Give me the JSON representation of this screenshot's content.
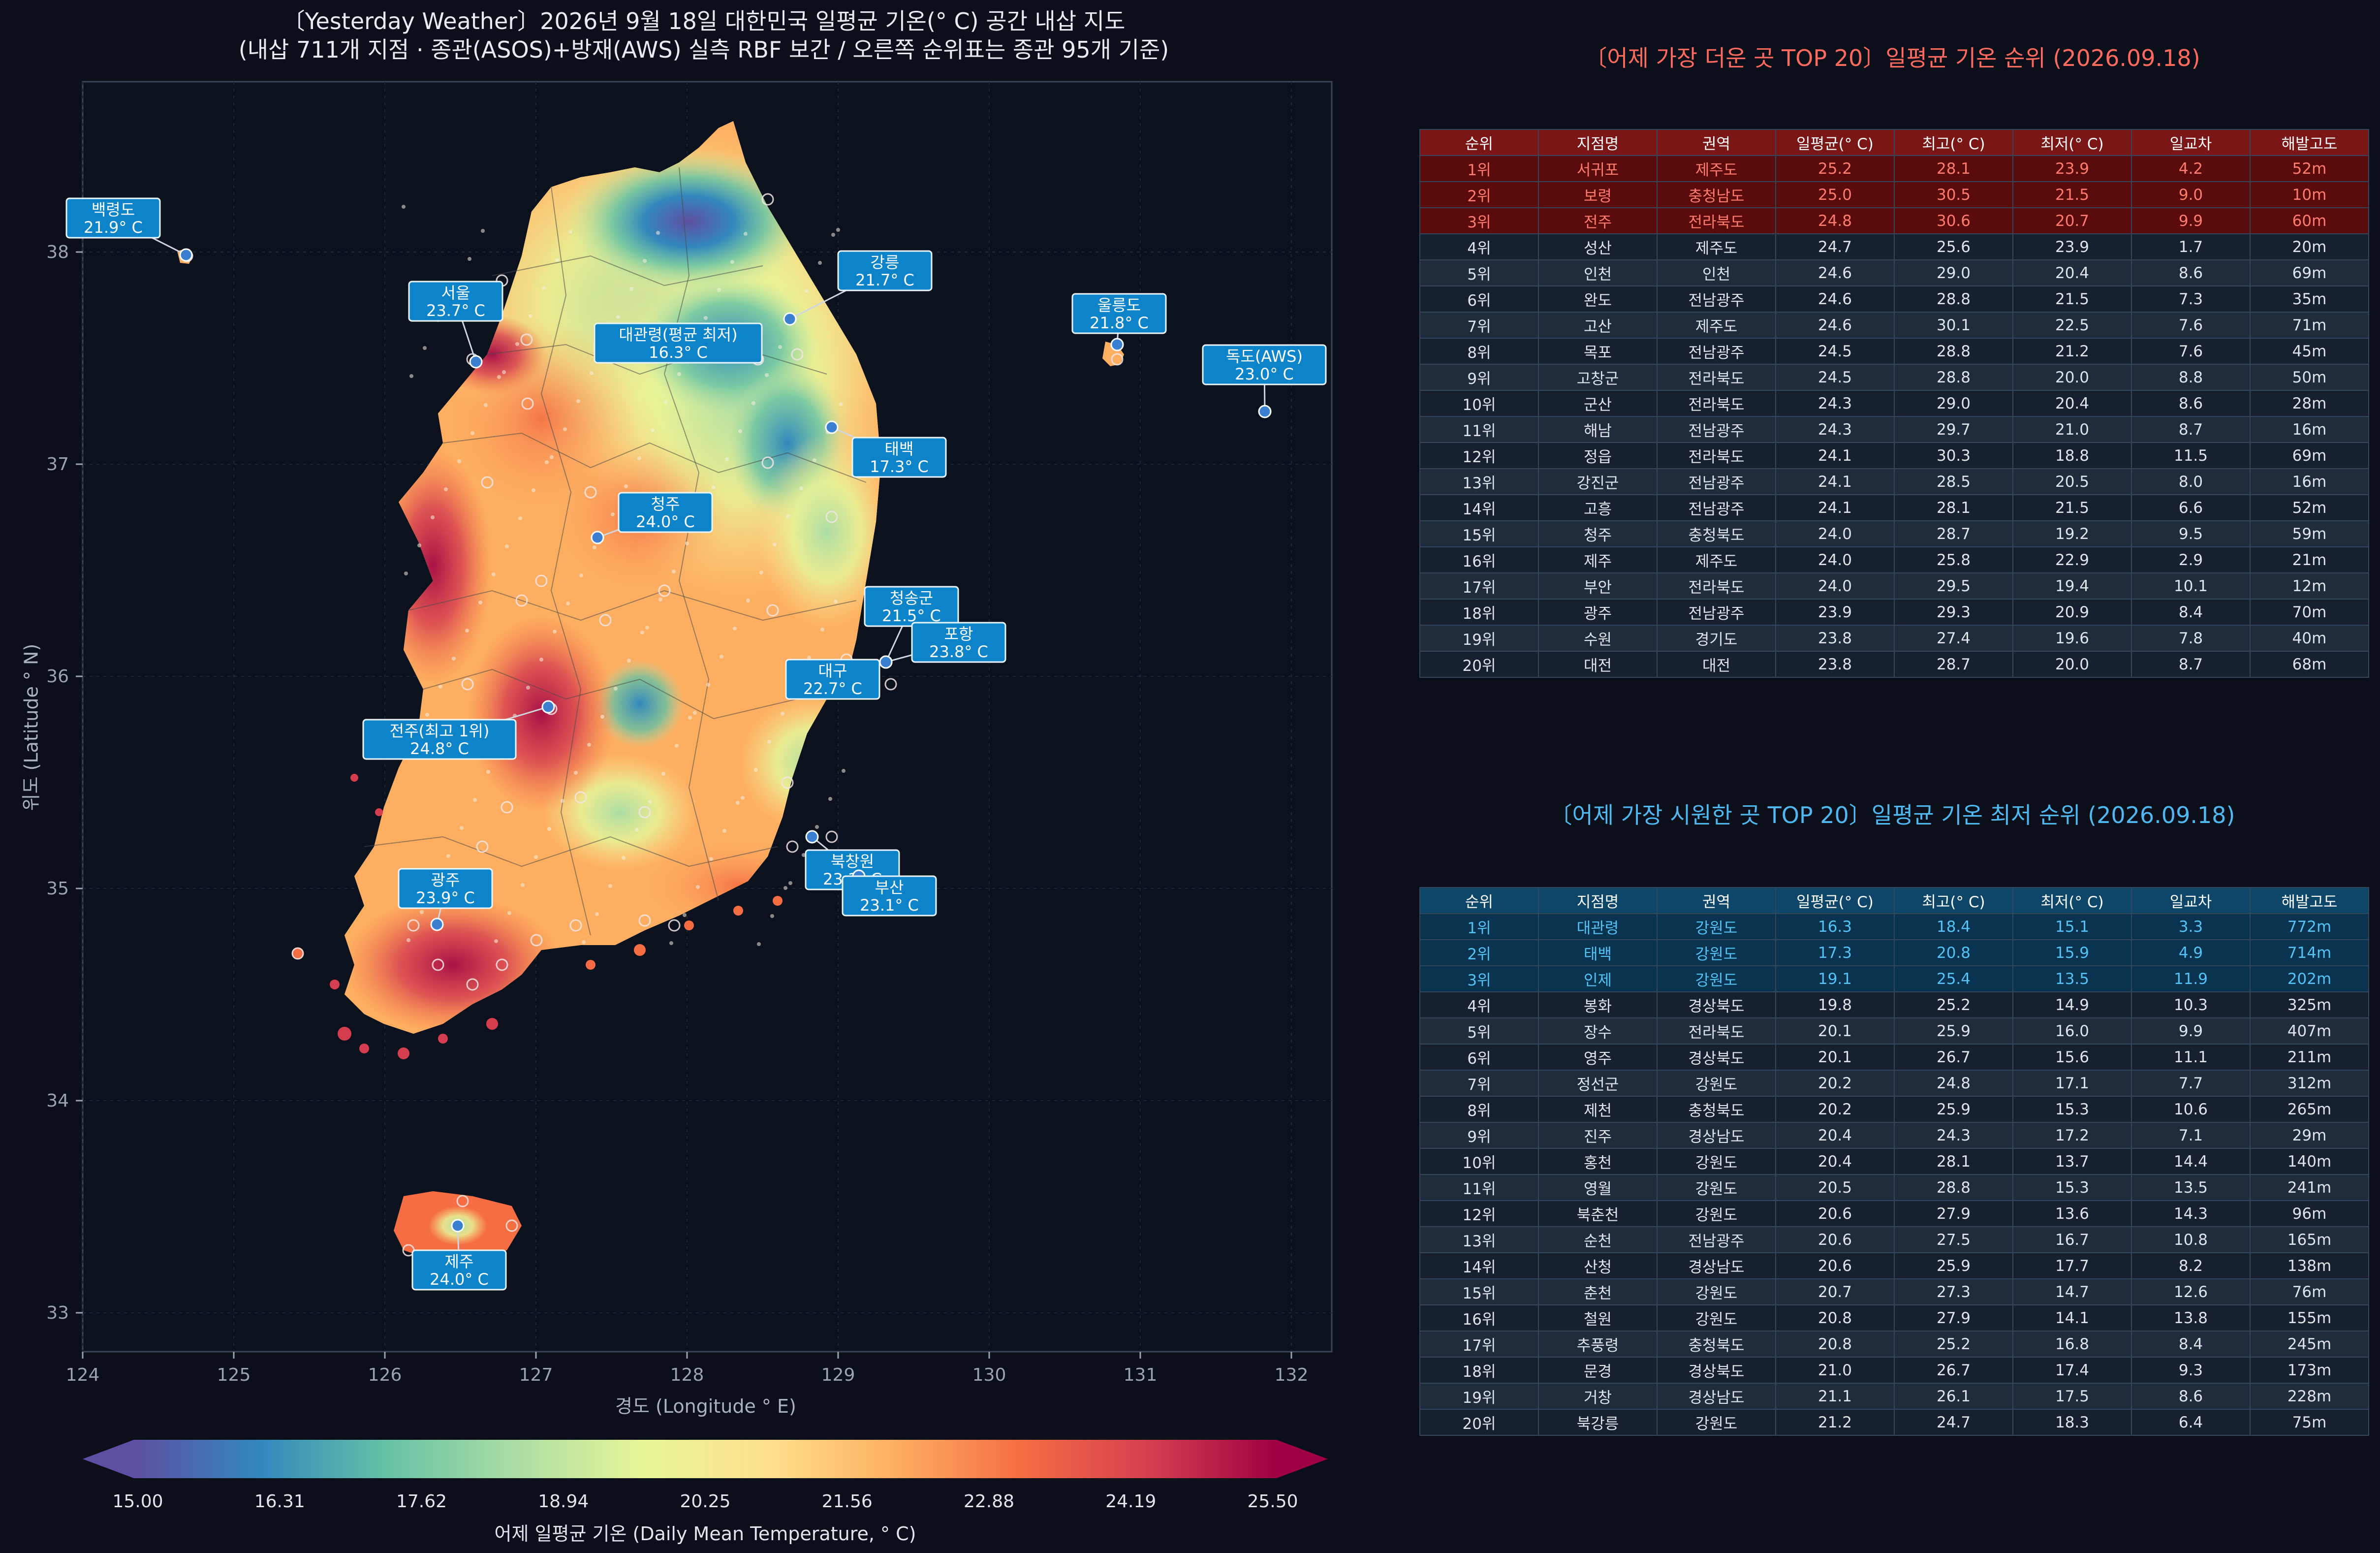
{
  "map": {
    "title_line1": "〔Yesterday Weather〕2026년 9월 18일 대한민국 일평균 기온(° C) 공간 내삽 지도",
    "title_line2": "(내삽 711개 지점 · 종관(ASOS)+방재(AWS) 실측 RBF 보간 / 오른쪽 순위표는 종관 95개 기준)",
    "xlabel": "경도 (Longitude ° E)",
    "ylabel": "위도 (Latitude ° N)",
    "xticks": [
      "124",
      "125",
      "126",
      "127",
      "128",
      "129",
      "130",
      "131",
      "132"
    ],
    "yticks": [
      "38",
      "37",
      "36",
      "35",
      "34",
      "33"
    ],
    "colorbar": {
      "title": "어제 일평균 기온 (Daily Mean Temperature, ° C)",
      "ticks": [
        "15.00",
        "16.31",
        "17.62",
        "18.94",
        "20.25",
        "21.56",
        "22.88",
        "24.19",
        "25.50"
      ],
      "colors": [
        "#5e4fa2",
        "#3288bd",
        "#66c2a5",
        "#abdda4",
        "#e6f598",
        "#fee08b",
        "#fdae61",
        "#f46d43",
        "#d53e4f",
        "#9e0142"
      ]
    },
    "labels": [
      {
        "name": "백령도",
        "value": "21.9° C"
      },
      {
        "name": "서울",
        "value": "23.7° C"
      },
      {
        "name": "대관령(평균 최저)",
        "value": "16.3° C"
      },
      {
        "name": "강릉",
        "value": "21.7° C"
      },
      {
        "name": "울릉도",
        "value": "21.8° C"
      },
      {
        "name": "독도(AWS)",
        "value": "23.0° C"
      },
      {
        "name": "태백",
        "value": "17.3° C"
      },
      {
        "name": "청주",
        "value": "24.0° C"
      },
      {
        "name": "청송군",
        "value": "21.5° C"
      },
      {
        "name": "포항",
        "value": "23.8° C"
      },
      {
        "name": "대구",
        "value": "22.7° C"
      },
      {
        "name": "전주(최고 1위)",
        "value": "24.8° C"
      },
      {
        "name": "북창원",
        "value": "23.3° C"
      },
      {
        "name": "부산",
        "value": "23.1° C"
      },
      {
        "name": "광주",
        "value": "23.9° C"
      },
      {
        "name": "제주",
        "value": "24.0° C"
      }
    ]
  },
  "hot_table": {
    "title": "〔어제 가장 더운 곳 TOP 20〕일평균 기온 순위 (2026.09.18)",
    "headers": [
      "순위",
      "지점명",
      "권역",
      "일평균(° C)",
      "최고(° C)",
      "최저(° C)",
      "일교차",
      "해발고도"
    ],
    "rows": [
      [
        "1위",
        "서귀포",
        "제주도",
        "25.2",
        "28.1",
        "23.9",
        "4.2",
        "52m"
      ],
      [
        "2위",
        "보령",
        "충청남도",
        "25.0",
        "30.5",
        "21.5",
        "9.0",
        "10m"
      ],
      [
        "3위",
        "전주",
        "전라북도",
        "24.8",
        "30.6",
        "20.7",
        "9.9",
        "60m"
      ],
      [
        "4위",
        "성산",
        "제주도",
        "24.7",
        "25.6",
        "23.9",
        "1.7",
        "20m"
      ],
      [
        "5위",
        "인천",
        "인천",
        "24.6",
        "29.0",
        "20.4",
        "8.6",
        "69m"
      ],
      [
        "6위",
        "완도",
        "전남광주",
        "24.6",
        "28.8",
        "21.5",
        "7.3",
        "35m"
      ],
      [
        "7위",
        "고산",
        "제주도",
        "24.6",
        "30.1",
        "22.5",
        "7.6",
        "71m"
      ],
      [
        "8위",
        "목포",
        "전남광주",
        "24.5",
        "28.8",
        "21.2",
        "7.6",
        "45m"
      ],
      [
        "9위",
        "고창군",
        "전라북도",
        "24.5",
        "28.8",
        "20.0",
        "8.8",
        "50m"
      ],
      [
        "10위",
        "군산",
        "전라북도",
        "24.3",
        "29.0",
        "20.4",
        "8.6",
        "28m"
      ],
      [
        "11위",
        "해남",
        "전남광주",
        "24.3",
        "29.7",
        "21.0",
        "8.7",
        "16m"
      ],
      [
        "12위",
        "정읍",
        "전라북도",
        "24.1",
        "30.3",
        "18.8",
        "11.5",
        "69m"
      ],
      [
        "13위",
        "강진군",
        "전남광주",
        "24.1",
        "28.5",
        "20.5",
        "8.0",
        "16m"
      ],
      [
        "14위",
        "고흥",
        "전남광주",
        "24.1",
        "28.1",
        "21.5",
        "6.6",
        "52m"
      ],
      [
        "15위",
        "청주",
        "충청북도",
        "24.0",
        "28.7",
        "19.2",
        "9.5",
        "59m"
      ],
      [
        "16위",
        "제주",
        "제주도",
        "24.0",
        "25.8",
        "22.9",
        "2.9",
        "21m"
      ],
      [
        "17위",
        "부안",
        "전라북도",
        "24.0",
        "29.5",
        "19.4",
        "10.1",
        "12m"
      ],
      [
        "18위",
        "광주",
        "전남광주",
        "23.9",
        "29.3",
        "20.9",
        "8.4",
        "70m"
      ],
      [
        "19위",
        "수원",
        "경기도",
        "23.8",
        "27.4",
        "19.6",
        "7.8",
        "40m"
      ],
      [
        "20위",
        "대전",
        "대전",
        "23.8",
        "28.7",
        "20.0",
        "8.7",
        "68m"
      ]
    ]
  },
  "cool_table": {
    "title": "〔어제 가장 시원한 곳 TOP 20〕일평균 기온 최저 순위 (2026.09.18)",
    "headers": [
      "순위",
      "지점명",
      "권역",
      "일평균(° C)",
      "최고(° C)",
      "최저(° C)",
      "일교차",
      "해발고도"
    ],
    "rows": [
      [
        "1위",
        "대관령",
        "강원도",
        "16.3",
        "18.4",
        "15.1",
        "3.3",
        "772m"
      ],
      [
        "2위",
        "태백",
        "강원도",
        "17.3",
        "20.8",
        "15.9",
        "4.9",
        "714m"
      ],
      [
        "3위",
        "인제",
        "강원도",
        "19.1",
        "25.4",
        "13.5",
        "11.9",
        "202m"
      ],
      [
        "4위",
        "봉화",
        "경상북도",
        "19.8",
        "25.2",
        "14.9",
        "10.3",
        "325m"
      ],
      [
        "5위",
        "장수",
        "전라북도",
        "20.1",
        "25.9",
        "16.0",
        "9.9",
        "407m"
      ],
      [
        "6위",
        "영주",
        "경상북도",
        "20.1",
        "26.7",
        "15.6",
        "11.1",
        "211m"
      ],
      [
        "7위",
        "정선군",
        "강원도",
        "20.2",
        "24.8",
        "17.1",
        "7.7",
        "312m"
      ],
      [
        "8위",
        "제천",
        "충청북도",
        "20.2",
        "25.9",
        "15.3",
        "10.6",
        "265m"
      ],
      [
        "9위",
        "진주",
        "경상남도",
        "20.4",
        "24.3",
        "17.2",
        "7.1",
        "29m"
      ],
      [
        "10위",
        "홍천",
        "강원도",
        "20.4",
        "28.1",
        "13.7",
        "14.4",
        "140m"
      ],
      [
        "11위",
        "영월",
        "강원도",
        "20.5",
        "28.8",
        "15.3",
        "13.5",
        "241m"
      ],
      [
        "12위",
        "북춘천",
        "강원도",
        "20.6",
        "27.9",
        "13.6",
        "14.3",
        "96m"
      ],
      [
        "13위",
        "순천",
        "전남광주",
        "20.6",
        "27.5",
        "16.7",
        "10.8",
        "165m"
      ],
      [
        "14위",
        "산청",
        "경상남도",
        "20.6",
        "25.9",
        "17.7",
        "8.2",
        "138m"
      ],
      [
        "15위",
        "춘천",
        "강원도",
        "20.7",
        "27.3",
        "14.7",
        "12.6",
        "76m"
      ],
      [
        "16위",
        "철원",
        "강원도",
        "20.8",
        "27.9",
        "14.1",
        "13.8",
        "155m"
      ],
      [
        "17위",
        "추풍령",
        "충청북도",
        "20.8",
        "25.2",
        "16.8",
        "8.4",
        "245m"
      ],
      [
        "18위",
        "문경",
        "경상북도",
        "21.0",
        "26.7",
        "17.4",
        "9.3",
        "173m"
      ],
      [
        "19위",
        "거창",
        "경상남도",
        "21.1",
        "26.1",
        "17.5",
        "8.6",
        "228m"
      ],
      [
        "20위",
        "북강릉",
        "강원도",
        "21.2",
        "24.7",
        "18.3",
        "6.4",
        "75m"
      ]
    ]
  }
}
